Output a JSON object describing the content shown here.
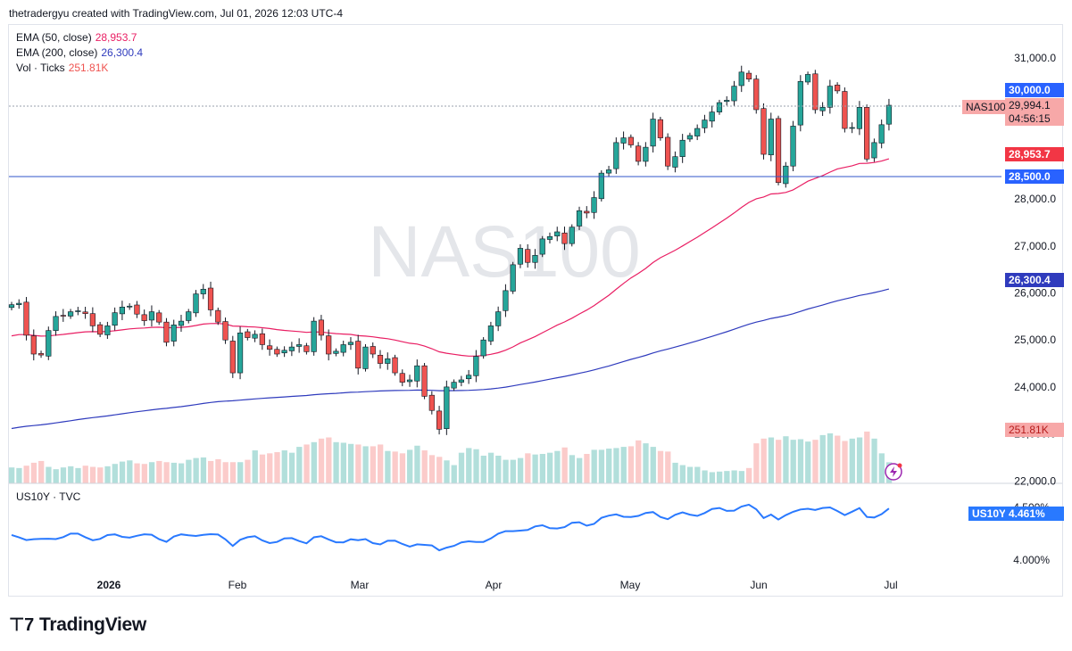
{
  "header": {
    "attribution": "thetradergyu created with TradingView.com, Jul 01, 2026 12:03 UTC-4"
  },
  "legend": {
    "ema50_label": "EMA (50, close)",
    "ema50_value": "28,953.7",
    "ema200_label": "EMA (200, close)",
    "ema200_value": "26,300.4",
    "vol_label": "Vol · Ticks",
    "vol_value": "251.81K"
  },
  "watermark": "NAS100",
  "sub_legend": "US10Y · TVC",
  "price_labels": {
    "symbol": "NAS100",
    "last": "29,994.1",
    "countdown": "04:56:15",
    "level_high": "30,000.0",
    "ema50": "28,953.7",
    "level_low": "28,500.0",
    "ema200": "26,300.4",
    "volume": "251.81K",
    "us10y_symbol": "US10Y",
    "us10y_value": "4.461%"
  },
  "colors": {
    "up": "#26a69a",
    "down": "#ef5350",
    "up_vol": "#b2dfdb",
    "down_vol": "#fbcbca",
    "ema50": "#e91e63",
    "ema200": "#2f3bbd",
    "us10y": "#2979ff",
    "hline": "#2f56c8"
  },
  "footer": {
    "brand": "TradingView"
  },
  "chart_data": {
    "type": "candlestick",
    "instrument": "NAS100",
    "y_axis_ticks": [
      "31,000.0",
      "30,000.0",
      "29,000.0",
      "28,000.0",
      "27,000.0",
      "26,000.0",
      "25,000.0",
      "24,000.0",
      "23,000.0",
      "22,000.0"
    ],
    "x_axis_ticks": [
      "2026",
      "Feb",
      "Mar",
      "Apr",
      "May",
      "Jun",
      "Jul"
    ],
    "horizontal_lines": [
      30000,
      28500
    ],
    "closes": [
      25750,
      25780,
      25100,
      24700,
      24680,
      25200,
      25500,
      25520,
      25600,
      25620,
      25560,
      25300,
      25120,
      25300,
      25580,
      25700,
      25720,
      25550,
      25410,
      25600,
      25380,
      24950,
      25320,
      25400,
      25600,
      25980,
      26080,
      25640,
      25380,
      25000,
      24300,
      25150,
      25050,
      25120,
      24900,
      24800,
      24700,
      24780,
      24850,
      24900,
      24750,
      25400,
      25100,
      24700,
      24760,
      24900,
      24950,
      24400,
      24850,
      24700,
      24500,
      24600,
      24300,
      24100,
      24150,
      24450,
      23800,
      23500,
      23100,
      24000,
      24100,
      24150,
      24250,
      24650,
      25000,
      25300,
      25600,
      26050,
      26600,
      26950,
      26650,
      26800,
      27150,
      27200,
      27300,
      27050,
      27400,
      27750,
      27700,
      28030,
      28550,
      28620,
      29200,
      29300,
      29150,
      28800,
      29100,
      29700,
      29300,
      28700,
      28900,
      29250,
      29350,
      29500,
      29680,
      29850,
      30050,
      30100,
      30400,
      30700,
      30550,
      29900,
      28950,
      29700,
      28350,
      28700,
      29550,
      30500,
      30650,
      29900,
      29950,
      30400,
      30300,
      29500,
      29520,
      29950,
      28850,
      29200,
      29580,
      29994
    ],
    "volume_k": [
      243,
      242,
      246,
      251,
      254,
      244,
      240,
      243,
      245,
      242,
      246,
      244,
      243,
      245,
      249,
      253,
      255,
      250,
      249,
      252,
      254,
      252,
      251,
      250,
      256,
      259,
      260,
      254,
      257,
      252,
      252,
      252,
      256,
      272,
      265,
      267,
      269,
      272,
      268,
      278,
      282,
      286,
      292,
      294,
      286,
      285,
      283,
      282,
      279,
      279,
      282,
      271,
      270,
      267,
      273,
      280,
      272,
      264,
      261,
      255,
      247,
      268,
      276,
      274,
      263,
      268,
      263,
      256,
      256,
      259,
      267,
      265,
      266,
      268,
      271,
      277,
      264,
      259,
      266,
      273,
      273,
      275,
      276,
      278,
      279,
      289,
      284,
      278,
      271,
      270,
      251,
      247,
      244,
      244,
      238,
      235,
      236,
      237,
      238,
      237,
      242,
      284,
      292,
      294,
      290,
      296,
      290,
      291,
      287,
      290,
      298,
      301,
      297,
      288,
      292,
      294,
      304,
      292,
      267,
      251.81
    ],
    "ema50": {
      "last": 28953.7,
      "start": 25060
    },
    "ema200": {
      "last": 26300.4,
      "start": 23090
    },
    "us10y": {
      "last": "4.461%",
      "y_ticks": [
        "4.500%",
        "4.000%"
      ]
    }
  }
}
